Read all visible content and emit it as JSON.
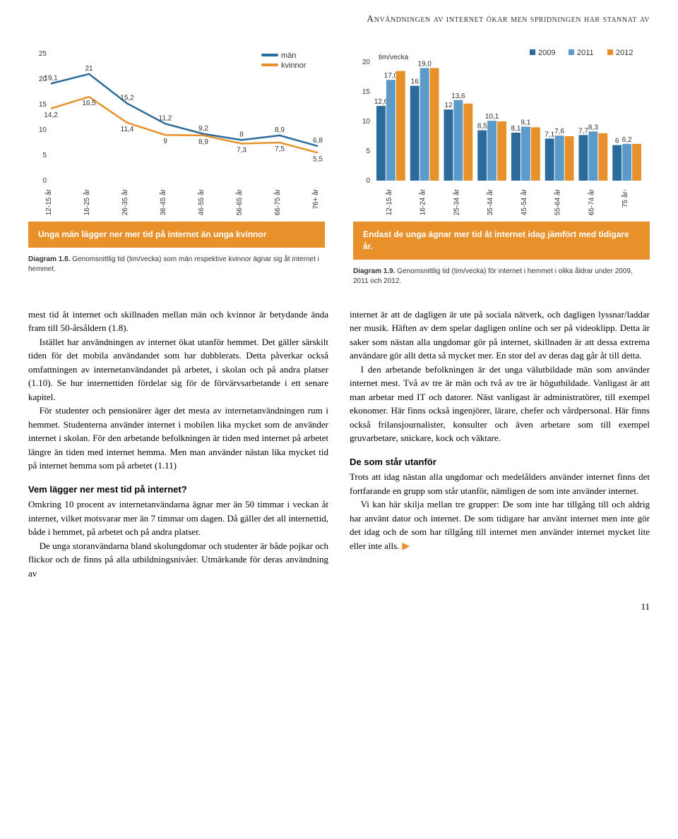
{
  "header": "Användningen av internet ökar men spridningen har stannat av",
  "page_number": "11",
  "line_chart": {
    "type": "line",
    "y_ticks": [
      0,
      5,
      10,
      15,
      20,
      25
    ],
    "ylim": [
      0,
      25
    ],
    "categories": [
      "12-15 år",
      "16-25 år",
      "26-35 år",
      "36-45 år",
      "46-55 år",
      "56-65 år",
      "66-75 år",
      "76+ år"
    ],
    "series": [
      {
        "name": "män",
        "color": "#2b6b9c",
        "values": [
          19.1,
          21.0,
          15.2,
          11.2,
          9.2,
          8.0,
          8.9,
          6.8
        ]
      },
      {
        "name": "kvinnor",
        "color": "#e8912a",
        "values": [
          14.2,
          16.5,
          11.4,
          9.0,
          8.9,
          7.3,
          7.5,
          5.5
        ]
      }
    ],
    "line_width": 2.5,
    "background_color": "#ffffff",
    "label_fontsize": 10
  },
  "line_chart_caption": "Unga män lägger ner mer tid på internet än unga kvinnor",
  "line_chart_diagram": {
    "prefix": "Diagram 1.8.",
    "text": " Genomsnittlig tid (tim/vecka) som män respektive kvinnor ägnar sig åt internet i hemmet."
  },
  "bar_chart": {
    "type": "bar",
    "unit_label": "tim/vecka",
    "y_ticks": [
      0,
      5,
      10,
      15,
      20
    ],
    "ylim": [
      0,
      20
    ],
    "categories": [
      "12-15 år",
      "16-24 år",
      "25-34 år",
      "35-44 år",
      "45-54 år",
      "55-64 år",
      "65-74 år",
      "75 år-"
    ],
    "series": [
      {
        "name": "2009",
        "color": "#2b6b9c",
        "values": [
          12.6,
          16,
          12,
          8.5,
          8.1,
          7.1,
          7.7,
          6
        ]
      },
      {
        "name": "2011",
        "color": "#5a9bc9",
        "values": [
          17.0,
          19.0,
          13.6,
          10.1,
          9.1,
          7.6,
          8.3,
          6.2
        ]
      },
      {
        "name": "2012",
        "color": "#e8912a",
        "values": [
          null,
          null,
          null,
          null,
          null,
          null,
          null,
          null
        ]
      }
    ],
    "all_values_by_group": [
      [
        12.6,
        17.0,
        null
      ],
      [
        16,
        19.0,
        null
      ],
      [
        12,
        13.6,
        null
      ],
      [
        8.5,
        10.1,
        null
      ],
      [
        8.1,
        9.1,
        null
      ],
      [
        7.1,
        7.6,
        null
      ],
      [
        7.7,
        8.3,
        null
      ],
      [
        6,
        6.2,
        null
      ]
    ],
    "visible_labels": [
      [
        "12,6",
        "17,0",
        ""
      ],
      [
        "16",
        "19,0",
        ""
      ],
      [
        "12",
        "13,6",
        ""
      ],
      [
        "8,5",
        "10,1",
        ""
      ],
      [
        "8,1",
        "9,1",
        ""
      ],
      [
        "7,1",
        "7,6",
        ""
      ],
      [
        "7,7",
        "8,3",
        ""
      ],
      [
        "6",
        "6,2",
        ""
      ]
    ],
    "orange_overlay_values": [
      null,
      null,
      null,
      null,
      null,
      null,
      null,
      null
    ],
    "bar_width": 0.26,
    "background_color": "#ffffff",
    "label_fontsize": 10
  },
  "bar_chart_caption": "Endast de unga ägnar mer tid åt internet idag jämfört med tidigare år.",
  "bar_chart_diagram": {
    "prefix": "Diagram 1.9.",
    "text": " Genomsnittlig tid (tim/vecka) för internet i hemmet i olika åldrar under 2009, 2011 och 2012."
  },
  "body": {
    "left": [
      "mest tid åt internet och skillnaden mellan män och kvinnor är betydande ända fram till 50-årsåldern (1.8).",
      "Istället har användningen av internet ökat utanför hemmet. Det gäller särskilt tiden för det mobila användandet som har dubblerats. Detta påverkar också omfattningen av internetanvändandet på arbetet, i skolan och på andra platser (1.10). Se hur internettiden fördelar sig för de förvärvsarbetande i ett senare kapitel.",
      "För studenter och pensionärer äger det mesta av internetanvändningen rum i hemmet. Studenterna använder internet i mobilen lika mycket som de använder internet i skolan. För den arbetande befolkningen är tiden med internet på arbetet längre än tiden med internet hemma. Men man använder nästan lika mycket tid på internet hemma som på arbetet (1.11)"
    ],
    "left_subhead": "Vem lägger ner mest tid på internet?",
    "left_after": [
      "Omkring 10 procent av internetanvändarna ägnar mer än 50 timmar i veckan åt internet, vilket motsvarar mer än 7 timmar om dagen. Då gäller det all internettid, både i hemmet, på arbetet och på andra platser.",
      "De unga storanvändarna bland skol­ungdomar och studenter är både pojkar och flickor och de finns på alla utbildningsnivåer. Utmärkande för deras användning av"
    ],
    "right": [
      "internet är att de dagligen är ute på sociala nätverk, och dagligen lyssnar/laddar ner musik. Häften av dem spelar dagligen online och ser på videoklipp. Detta är saker som nästan alla ungdomar gör på internet, skillnaden är att dessa extrema användare gör allt detta så mycket mer. En stor del av deras dag går åt till detta.",
      "I den arbetande befolkningen är det unga välutbildade män som använder internet mest. Två av tre är män och två av tre är högutbildade. Vanligast är att man arbetar med IT och datorer. Näst vanligast är administratörer, till exempel ekonomer. Här finns också ingenjörer, lärare, chefer och vårdpersonal. Här finns också frilansjournalister, konsulter och även arbetare som till exempel gruvarbetare, snickare, kock och väktare."
    ],
    "right_subhead": "De som står utanför",
    "right_after": [
      "Trots att idag nästan alla ungdomar och medelålders använder internet finns det fortfarande en grupp som står utanför, nämligen de som inte använder internet.",
      "Vi kan här skilja mellan tre grupper: De som inte har tillgång till och aldrig har använt dator och internet. De som tidigare har använt internet men inte gör det idag och de som har tillgång till internet men använder internet mycket lite eller inte alls."
    ]
  },
  "colors": {
    "orange": "#e8912a",
    "blue_dark": "#2b6b9c",
    "blue_light": "#5a9bc9",
    "text": "#000000"
  }
}
